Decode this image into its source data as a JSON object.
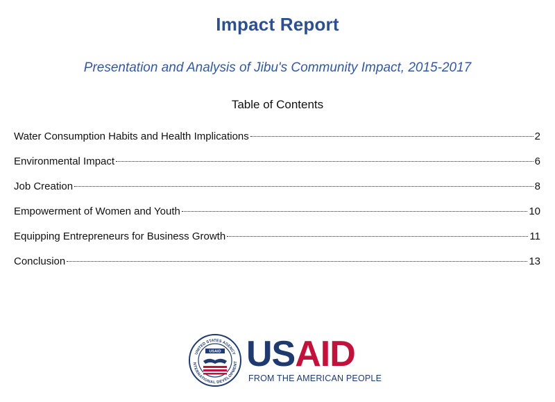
{
  "document": {
    "title": "Impact Report",
    "subtitle": "Presentation and Analysis of Jibu's Community Impact, 2015-2017",
    "toc_heading": "Table of Contents",
    "toc": [
      {
        "label": "Water Consumption Habits and Health Implications",
        "page": "2"
      },
      {
        "label": "Environmental Impact",
        "page": "6"
      },
      {
        "label": "Job Creation",
        "page": "8"
      },
      {
        "label": "Empowerment of Women and Youth",
        "page": "10"
      },
      {
        "label": "Equipping Entrepreneurs for Business Growth",
        "page": "11"
      },
      {
        "label": "Conclusion",
        "page": "13"
      }
    ]
  },
  "logo": {
    "wordmark_us": "US",
    "wordmark_aid": "AID",
    "tagline": "FROM THE AMERICAN PEOPLE",
    "seal_text": "UNITED STATES AGENCY INTERNATIONAL DEVELOPMENT",
    "seal_label": "USAID",
    "colors": {
      "navy": "#1f3a6e",
      "red": "#c2113a"
    }
  },
  "colors": {
    "title": "#2e4f8f",
    "subtitle": "#3358a0"
  }
}
